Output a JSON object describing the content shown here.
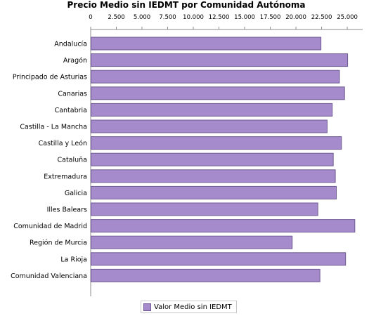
{
  "chart_data": {
    "type": "bar",
    "orientation": "horizontal",
    "title": "Precio Medio sin IEDMT por Comunidad Autónoma",
    "categories": [
      "Andalucía",
      "Aragón",
      "Principado de Asturias",
      "Canarias",
      "Cantabria",
      "Castilla - La Mancha",
      "Castilla y León",
      "Cataluña",
      "Extremadura",
      "Galicia",
      "Illes Balears",
      "Comunidad de Madrid",
      "Región de Murcia",
      "La Rioja",
      "Comunidad Valenciana"
    ],
    "series": [
      {
        "name": "Valor Medio sin IEDMT",
        "values": [
          22400,
          25000,
          24200,
          24700,
          23500,
          23000,
          24400,
          23600,
          23800,
          23900,
          22100,
          25700,
          19600,
          24800,
          22300
        ]
      }
    ],
    "xlim": [
      0,
      26500
    ],
    "xticks": [
      "0",
      "2.500",
      "5.000",
      "7.500",
      "10.000",
      "12.500",
      "15.000",
      "17.500",
      "20.000",
      "22.500",
      "25.000"
    ],
    "xtick_values": [
      0,
      2500,
      5000,
      7500,
      10000,
      12500,
      15000,
      17500,
      20000,
      22500,
      25000
    ],
    "grid": false,
    "legend": "bottom",
    "colors": {
      "bar_fill": "#a58bcb",
      "bar_stroke": "#6f5a93",
      "axis": "#8c8c8c"
    }
  }
}
